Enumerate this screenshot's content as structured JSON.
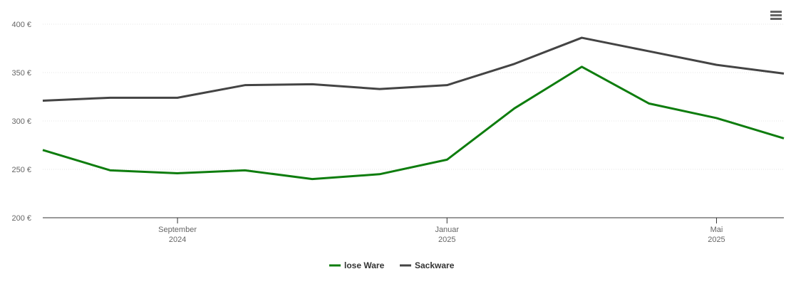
{
  "chart_data": {
    "type": "line",
    "x": [
      "2024-07",
      "2024-08",
      "2024-09",
      "2024-10",
      "2024-11",
      "2024-12",
      "2025-01",
      "2025-02",
      "2025-03",
      "2025-04",
      "2025-05",
      "2025-06"
    ],
    "series": [
      {
        "name": "lose Ware",
        "color": "#0e7d0e",
        "values": [
          270,
          249,
          246,
          249,
          240,
          245,
          260,
          313,
          356,
          318,
          303,
          282
        ]
      },
      {
        "name": "Sackware",
        "color": "#444444",
        "values": [
          321,
          324,
          324,
          337,
          338,
          333,
          337,
          359,
          386,
          372,
          358,
          349
        ]
      }
    ],
    "xlim": [
      "2024-07",
      "2025-06"
    ],
    "xticks": [
      {
        "value": "2024-09",
        "label": "September 2024"
      },
      {
        "value": "2025-01",
        "label": "Januar 2025"
      },
      {
        "value": "2025-05",
        "label": "Mai 2025"
      }
    ],
    "ylim": [
      200,
      400
    ],
    "yticks": [
      {
        "value": 200,
        "label": "200 €"
      },
      {
        "value": 250,
        "label": "250 €"
      },
      {
        "value": 300,
        "label": "300 €"
      },
      {
        "value": 350,
        "label": "350 €"
      },
      {
        "value": 400,
        "label": "400 €"
      }
    ],
    "grid": true
  }
}
